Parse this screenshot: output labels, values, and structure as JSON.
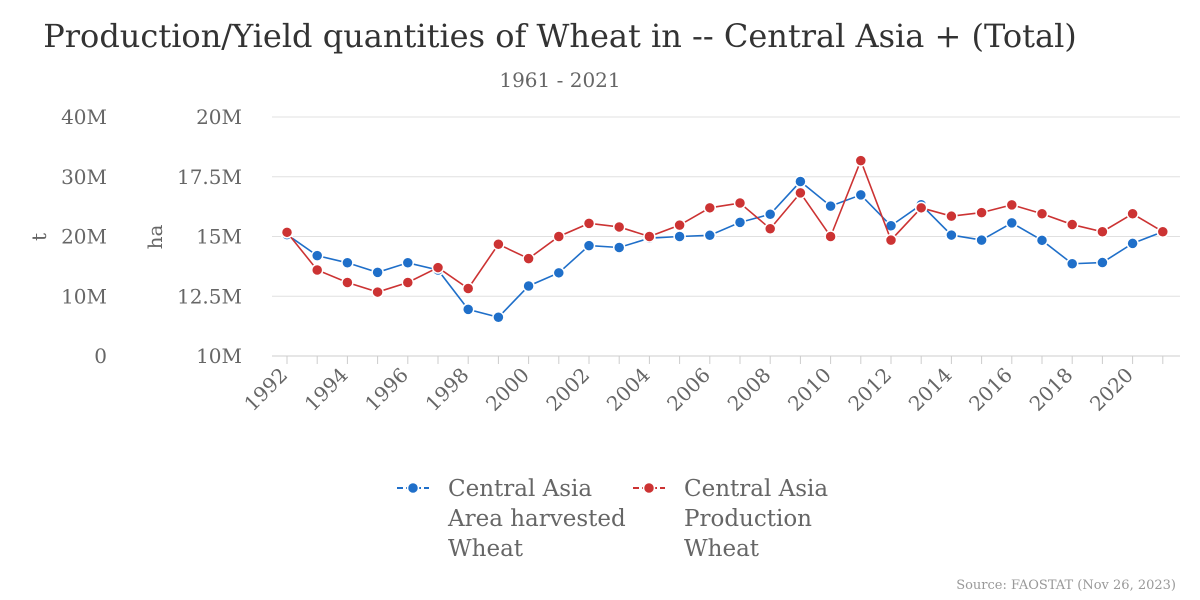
{
  "chart_data": {
    "type": "line",
    "title": "Production/Yield quantities of Wheat in -- Central Asia + (Total)",
    "subtitle": "1961 - 2021",
    "source": "Source: FAOSTAT (Nov 26, 2023)",
    "x": [
      1992,
      1993,
      1994,
      1995,
      1996,
      1997,
      1998,
      1999,
      2000,
      2001,
      2002,
      2003,
      2004,
      2005,
      2006,
      2007,
      2008,
      2009,
      2010,
      2011,
      2012,
      2013,
      2014,
      2015,
      2016,
      2017,
      2018,
      2019,
      2020,
      2021
    ],
    "x_ticks": [
      "1992",
      "1994",
      "1996",
      "1998",
      "2000",
      "2002",
      "2004",
      "2006",
      "2008",
      "2010",
      "2012",
      "2014",
      "2016",
      "2018",
      "2020"
    ],
    "axes": {
      "production": {
        "label": "t",
        "ylim": [
          0,
          40000000
        ],
        "ticks": [
          "0",
          "10M",
          "20M",
          "30M",
          "40M"
        ]
      },
      "area": {
        "label": "ha",
        "ylim": [
          10000000,
          20000000
        ],
        "ticks": [
          "10M",
          "12.5M",
          "15M",
          "17.5M",
          "20M"
        ]
      }
    },
    "series": [
      {
        "name": "Central Asia Area harvested Wheat",
        "name_lines": [
          "Central Asia",
          "Area harvested",
          "Wheat"
        ],
        "axis": "area",
        "color": "#1f6fc9",
        "values": [
          15080000,
          14200000,
          13900000,
          13500000,
          13900000,
          13600000,
          11950000,
          11620000,
          12930000,
          13480000,
          14620000,
          14540000,
          14930000,
          15000000,
          15050000,
          15590000,
          15930000,
          17300000,
          16270000,
          16740000,
          15450000,
          16330000,
          15060000,
          14850000,
          15570000,
          14840000,
          13860000,
          13910000,
          14710000,
          15200000
        ]
      },
      {
        "name": "Central Asia Production Wheat",
        "name_lines": [
          "Central Asia",
          "Production",
          "Wheat"
        ],
        "axis": "production",
        "color": "#cc3333",
        "values": [
          20700000,
          14400000,
          12300000,
          10700000,
          12300000,
          14800000,
          11300000,
          18700000,
          16300000,
          20000000,
          22200000,
          21600000,
          20000000,
          21900000,
          24800000,
          25600000,
          21300000,
          27300000,
          20000000,
          32700000,
          19400000,
          24800000,
          23400000,
          24000000,
          25300000,
          23800000,
          22000000,
          20800000,
          23800000,
          20800000
        ]
      }
    ]
  }
}
